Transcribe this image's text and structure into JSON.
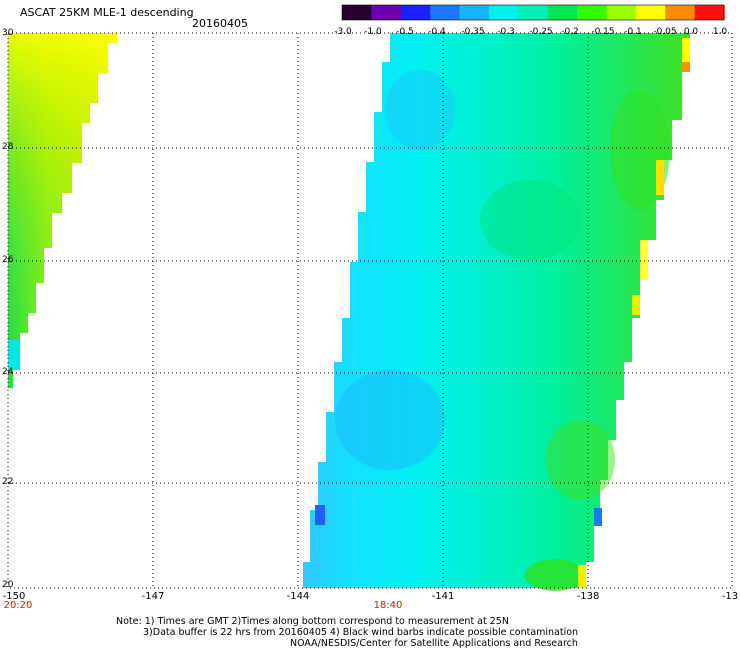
{
  "header": {
    "title": "ASCAT 25KM MLE-1 descending",
    "date": "20160405"
  },
  "colorbar": {
    "labels": [
      "-3.0",
      "-1.0",
      "-0.5",
      "-0.4",
      "-0.35",
      "-0.3",
      "-0.25",
      "-0.2",
      "-0.15",
      "-0.1",
      "-0.05",
      "0.0",
      "1.0"
    ],
    "colors": [
      "#2a0030",
      "#6a00b0",
      "#1a20ff",
      "#1e78ff",
      "#14b4ff",
      "#00f0f0",
      "#00f0b4",
      "#00e850",
      "#30ff00",
      "#9cff00",
      "#ffff00",
      "#ff8c00",
      "#ff1010"
    ]
  },
  "map": {
    "lat_labels": [
      "30",
      "28",
      "26",
      "24",
      "22",
      "20"
    ],
    "lon_labels": [
      "-150",
      "-147",
      "-144",
      "-141",
      "-138",
      "-13"
    ],
    "time_labels": [
      "20:20",
      "18:40"
    ]
  },
  "notes": {
    "line1": "Note: 1) Times are GMT 2)Times along bottom correspond to measurement at 25N",
    "line2": "3)Data buffer is 22 hrs from 20160405 4) Black wind barbs indicate possible contamination",
    "line3": "NOAA/NESDIS/Center for Satellite Applications and Research"
  }
}
